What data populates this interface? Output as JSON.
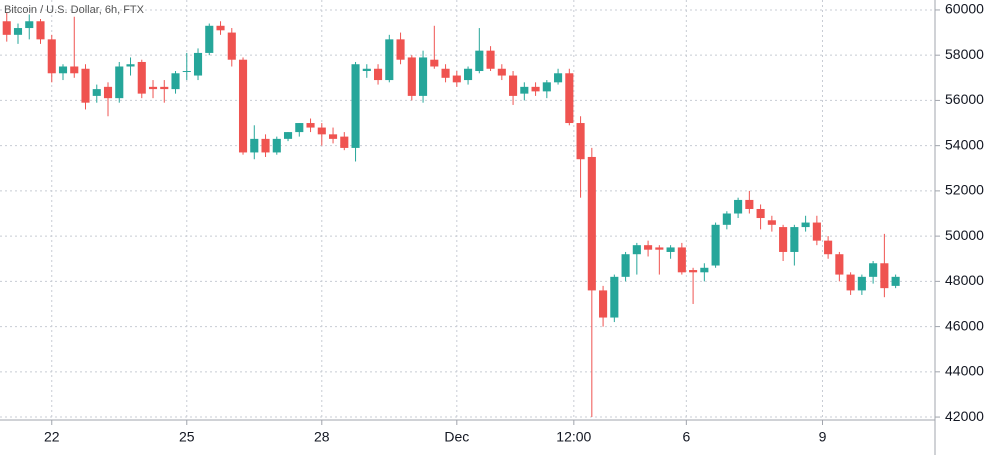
{
  "chart_data": {
    "type": "candlestick",
    "title": "Bitcoin / U.S. Dollar, 6h, FTX",
    "up_color": "#26a69a",
    "down_color": "#ef5350",
    "grid": true,
    "ylim": [
      41870,
      60440
    ],
    "yticks": [
      42000,
      44000,
      46000,
      48000,
      50000,
      52000,
      54000,
      56000,
      58000,
      60000
    ],
    "xlim": [
      -0.6,
      82.5
    ],
    "xticks": [
      {
        "value": 4,
        "label": "22"
      },
      {
        "value": 16,
        "label": "25"
      },
      {
        "value": 28,
        "label": "28"
      },
      {
        "value": 40,
        "label": "Dec"
      },
      {
        "value": 50.4,
        "label": "12:00"
      },
      {
        "value": 60.4,
        "label": "6"
      },
      {
        "value": 72.5,
        "label": "9"
      }
    ],
    "open": [
      59500,
      58900,
      59200,
      59500,
      58700,
      57200,
      57500,
      57400,
      56200,
      56600,
      56100,
      57500,
      57700,
      56600,
      56600,
      56500,
      57300,
      57100,
      58100,
      59300,
      59000,
      57800,
      53700,
      54300,
      53700,
      54300,
      54600,
      55000,
      54800,
      54500,
      54400,
      53900,
      57300,
      57400,
      56900,
      58700,
      57900,
      56200,
      57800,
      57400,
      57100,
      56900,
      57300,
      58200,
      57400,
      57100,
      56300,
      56600,
      56400,
      56800,
      57200,
      55000,
      53500,
      47600,
      46400,
      48200,
      49200,
      49600,
      49500,
      49300,
      49500,
      48500,
      48400,
      48700,
      50500,
      51000,
      51600,
      51200,
      50700,
      50400,
      49300,
      50400,
      50600,
      49800,
      49200,
      48300,
      47600,
      48200,
      48800,
      47800
    ],
    "high": [
      59900,
      59400,
      59800,
      59600,
      58900,
      57600,
      59700,
      57600,
      56700,
      56800,
      57700,
      57900,
      57800,
      56900,
      56900,
      57300,
      58100,
      58300,
      59400,
      59500,
      59200,
      57900,
      54900,
      54500,
      54400,
      54600,
      55000,
      55200,
      55000,
      54800,
      54600,
      57700,
      57600,
      57600,
      58900,
      59000,
      58000,
      58200,
      59300,
      57600,
      57300,
      57500,
      59200,
      58400,
      57600,
      57300,
      56800,
      56800,
      56900,
      57400,
      57400,
      55300,
      53900,
      47800,
      48300,
      49300,
      49700,
      49800,
      49600,
      49600,
      49700,
      48600,
      48800,
      50600,
      51100,
      51700,
      52000,
      51400,
      50900,
      50500,
      50500,
      50900,
      50900,
      50000,
      49300,
      48400,
      48300,
      48900,
      50100,
      48300
    ],
    "low": [
      58600,
      58500,
      58700,
      58500,
      56800,
      56900,
      57000,
      55600,
      55900,
      55300,
      55900,
      57100,
      56100,
      56100,
      55900,
      56300,
      56900,
      56900,
      58000,
      58900,
      57500,
      53600,
      53400,
      53500,
      53600,
      54200,
      54400,
      54600,
      54000,
      54100,
      53800,
      53300,
      57000,
      56700,
      56800,
      57600,
      56000,
      55900,
      57400,
      56800,
      56600,
      56700,
      57200,
      57300,
      56900,
      55800,
      56000,
      56200,
      56100,
      56700,
      54900,
      51700,
      42000,
      46000,
      46200,
      48000,
      48300,
      49100,
      48300,
      49000,
      48300,
      47000,
      48000,
      48600,
      50300,
      50800,
      51000,
      50300,
      50200,
      48900,
      48700,
      50200,
      49600,
      49000,
      48000,
      47400,
      47400,
      47900,
      47300,
      47700
    ],
    "close": [
      58900,
      59200,
      59500,
      58700,
      57200,
      57500,
      57200,
      55900,
      56500,
      56100,
      57500,
      57600,
      56300,
      56500,
      56500,
      57200,
      57300,
      58100,
      59300,
      59100,
      57800,
      53700,
      54300,
      53700,
      54300,
      54600,
      55000,
      54800,
      54500,
      54300,
      53900,
      57600,
      57400,
      56900,
      58700,
      57800,
      56200,
      57900,
      57500,
      57000,
      56800,
      57400,
      58200,
      57400,
      57100,
      56200,
      56600,
      56400,
      56800,
      57200,
      55000,
      53400,
      47600,
      46400,
      48200,
      49200,
      49600,
      49400,
      49400,
      49500,
      48400,
      48400,
      48600,
      50500,
      51000,
      51600,
      51200,
      50800,
      50500,
      49300,
      50400,
      50600,
      49800,
      49200,
      48300,
      47600,
      48200,
      48800,
      47700,
      48200
    ]
  }
}
